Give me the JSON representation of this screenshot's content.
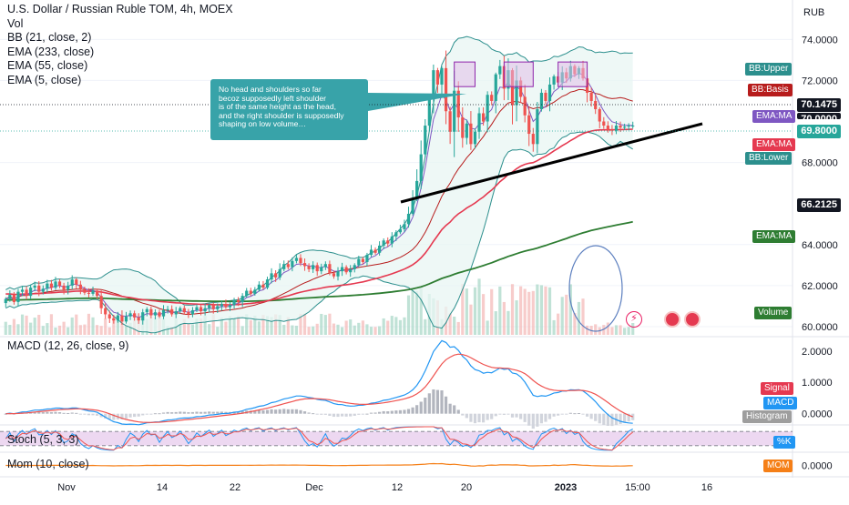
{
  "legend": {
    "title": "U.S. Dollar / Russian Ruble TOM, 4h, MOEX",
    "items": [
      "Vol",
      "BB (21, close, 2)",
      "EMA (233, close)",
      "EMA (55, close)",
      "EMA (5, close)"
    ]
  },
  "annotation": {
    "lines": [
      "No head and shoulders so far",
      "becoz supposedly left shoulder",
      "is of the same height as the head,",
      "and the right shoulder is supposedly",
      "shaping on low volume…"
    ]
  },
  "axis": {
    "currency": "RUB",
    "price_ticks": [
      "74.0000",
      "72.0000",
      "68.0000",
      "64.0000",
      "62.0000",
      "60.0000"
    ],
    "time_labels": [
      "Nov",
      "14",
      "22",
      "Dec",
      "12",
      "20",
      "2023",
      "15:00",
      "16"
    ]
  },
  "tags": {
    "bb_upper": "BB:Upper",
    "bb_basis": "BB:Basis",
    "ema_ma_1": "EMA:MA",
    "ema_ma_2": "EMA:MA",
    "bb_lower": "BB:Lower",
    "ema_ma_3": "EMA:MA",
    "volume": "Volume",
    "price_1": "70.1475",
    "price_2": "69.8000",
    "price_3": "66.2125",
    "price_cut": "70.0000"
  },
  "macd": {
    "legend": "MACD (12, 26, close, 9)",
    "ticks": [
      "2.0000",
      "1.0000",
      "0.0000"
    ],
    "tags": {
      "signal": "Signal",
      "macd": "MACD",
      "histogram": "Histogram"
    }
  },
  "stoch": {
    "legend": "Stoch (5, 3, 3)",
    "tag": "%K"
  },
  "mom": {
    "legend": "Mom (10, close)",
    "tag": "MOM",
    "tick": "0.0000"
  },
  "colors": {
    "up": "#26a69a",
    "down": "#ef5350",
    "ema233": "#2e7d32",
    "ema55": "#e53950",
    "ema5": "#b71c1c",
    "bb": "#2196f3",
    "bb_fill": "#e8f5f3",
    "macd": "#2196f3",
    "signal": "#ef5350",
    "stoch_k": "#2196f3",
    "stoch_d": "#ef5350",
    "mom": "#f57f17",
    "callout": "#38a3a9",
    "box": "#e1bee7"
  },
  "chart_data": {
    "type": "candlestick",
    "title": "U.S. Dollar / Russian Ruble TOM, 4h, MOEX",
    "ylabel": "RUB",
    "ylim": [
      59.6,
      75.7
    ],
    "yticks": [
      60,
      62,
      64,
      68,
      72,
      74
    ],
    "x_labels": [
      "Nov",
      "14",
      "22",
      "Dec",
      "12",
      "20",
      "2023",
      "15:00",
      "16"
    ],
    "series": [
      {
        "name": "USD/RUB TOM",
        "type": "ohlc",
        "count": 152,
        "close": [
          61.35,
          61.55,
          61.2,
          61.7,
          61.8,
          61.5,
          61.9,
          62.0,
          61.7,
          61.85,
          62.1,
          61.9,
          62.2,
          62.0,
          61.8,
          62.0,
          62.3,
          62.05,
          61.8,
          61.65,
          61.6,
          61.75,
          61.5,
          60.9,
          60.6,
          60.4,
          60.3,
          60.55,
          60.25,
          60.5,
          60.65,
          60.45,
          60.3,
          60.7,
          60.85,
          60.55,
          60.7,
          60.5,
          60.8,
          60.85,
          60.6,
          60.75,
          60.9,
          60.7,
          60.6,
          60.8,
          60.95,
          60.75,
          60.9,
          61.05,
          60.85,
          61.0,
          61.1,
          60.95,
          61.05,
          61.3,
          61.2,
          61.5,
          61.75,
          61.6,
          61.8,
          62.05,
          61.9,
          62.3,
          62.6,
          62.4,
          62.8,
          63.05,
          62.9,
          63.2,
          63.35,
          63.1,
          62.95,
          62.8,
          63.0,
          62.7,
          62.9,
          63.05,
          62.6,
          62.45,
          62.7,
          62.9,
          62.65,
          62.8,
          63.0,
          63.3,
          63.15,
          63.5,
          63.75,
          63.6,
          63.95,
          64.2,
          64.05,
          64.4,
          64.6,
          64.75,
          65.0,
          65.5,
          66.2,
          67.1,
          68.4,
          69.8,
          71.2,
          72.5,
          71.8,
          72.6,
          70.5,
          69.5,
          71.5,
          70.2,
          69.2,
          69.9,
          68.9,
          69.5,
          70.4,
          70.0,
          71.3,
          71.0,
          72.3,
          72.7,
          71.6,
          72.5,
          70.8,
          72.0,
          71.2,
          70.3,
          69.4,
          68.9,
          70.6,
          71.4,
          71.0,
          71.8,
          72.2,
          71.9,
          72.4,
          72.1,
          72.7,
          72.3,
          72.6,
          72.1,
          71.4,
          71.0,
          70.6,
          70.0,
          69.8,
          69.6,
          69.55,
          69.8,
          69.7,
          69.75,
          69.8,
          69.8
        ]
      },
      {
        "name": "EMA (5, close)",
        "type": "line"
      },
      {
        "name": "EMA (55, close)",
        "type": "line"
      },
      {
        "name": "EMA (233, close)",
        "type": "line"
      },
      {
        "name": "BB (21, close, 2)",
        "type": "band"
      },
      {
        "name": "MACD (12, 26, close, 9)",
        "type": "line",
        "ylim": [
          -0.3,
          2.4
        ],
        "yticks": [
          0,
          1,
          2
        ]
      },
      {
        "name": "Stoch (5, 3, 3)",
        "type": "line",
        "ylim": [
          0,
          100
        ]
      },
      {
        "name": "Mom (10, close)",
        "type": "line"
      }
    ],
    "annotations": {
      "neckline": {
        "from": [
          109,
          67.3
        ],
        "to": [
          168,
          71.3
        ]
      },
      "boxes": [
        {
          "x": [
            108,
            113
          ],
          "y": [
            71.7,
            72.9
          ]
        },
        {
          "x": [
            120,
            127
          ],
          "y": [
            71.7,
            72.9
          ]
        },
        {
          "x": [
            133,
            140
          ],
          "y": [
            71.7,
            72.9
          ]
        }
      ]
    }
  }
}
